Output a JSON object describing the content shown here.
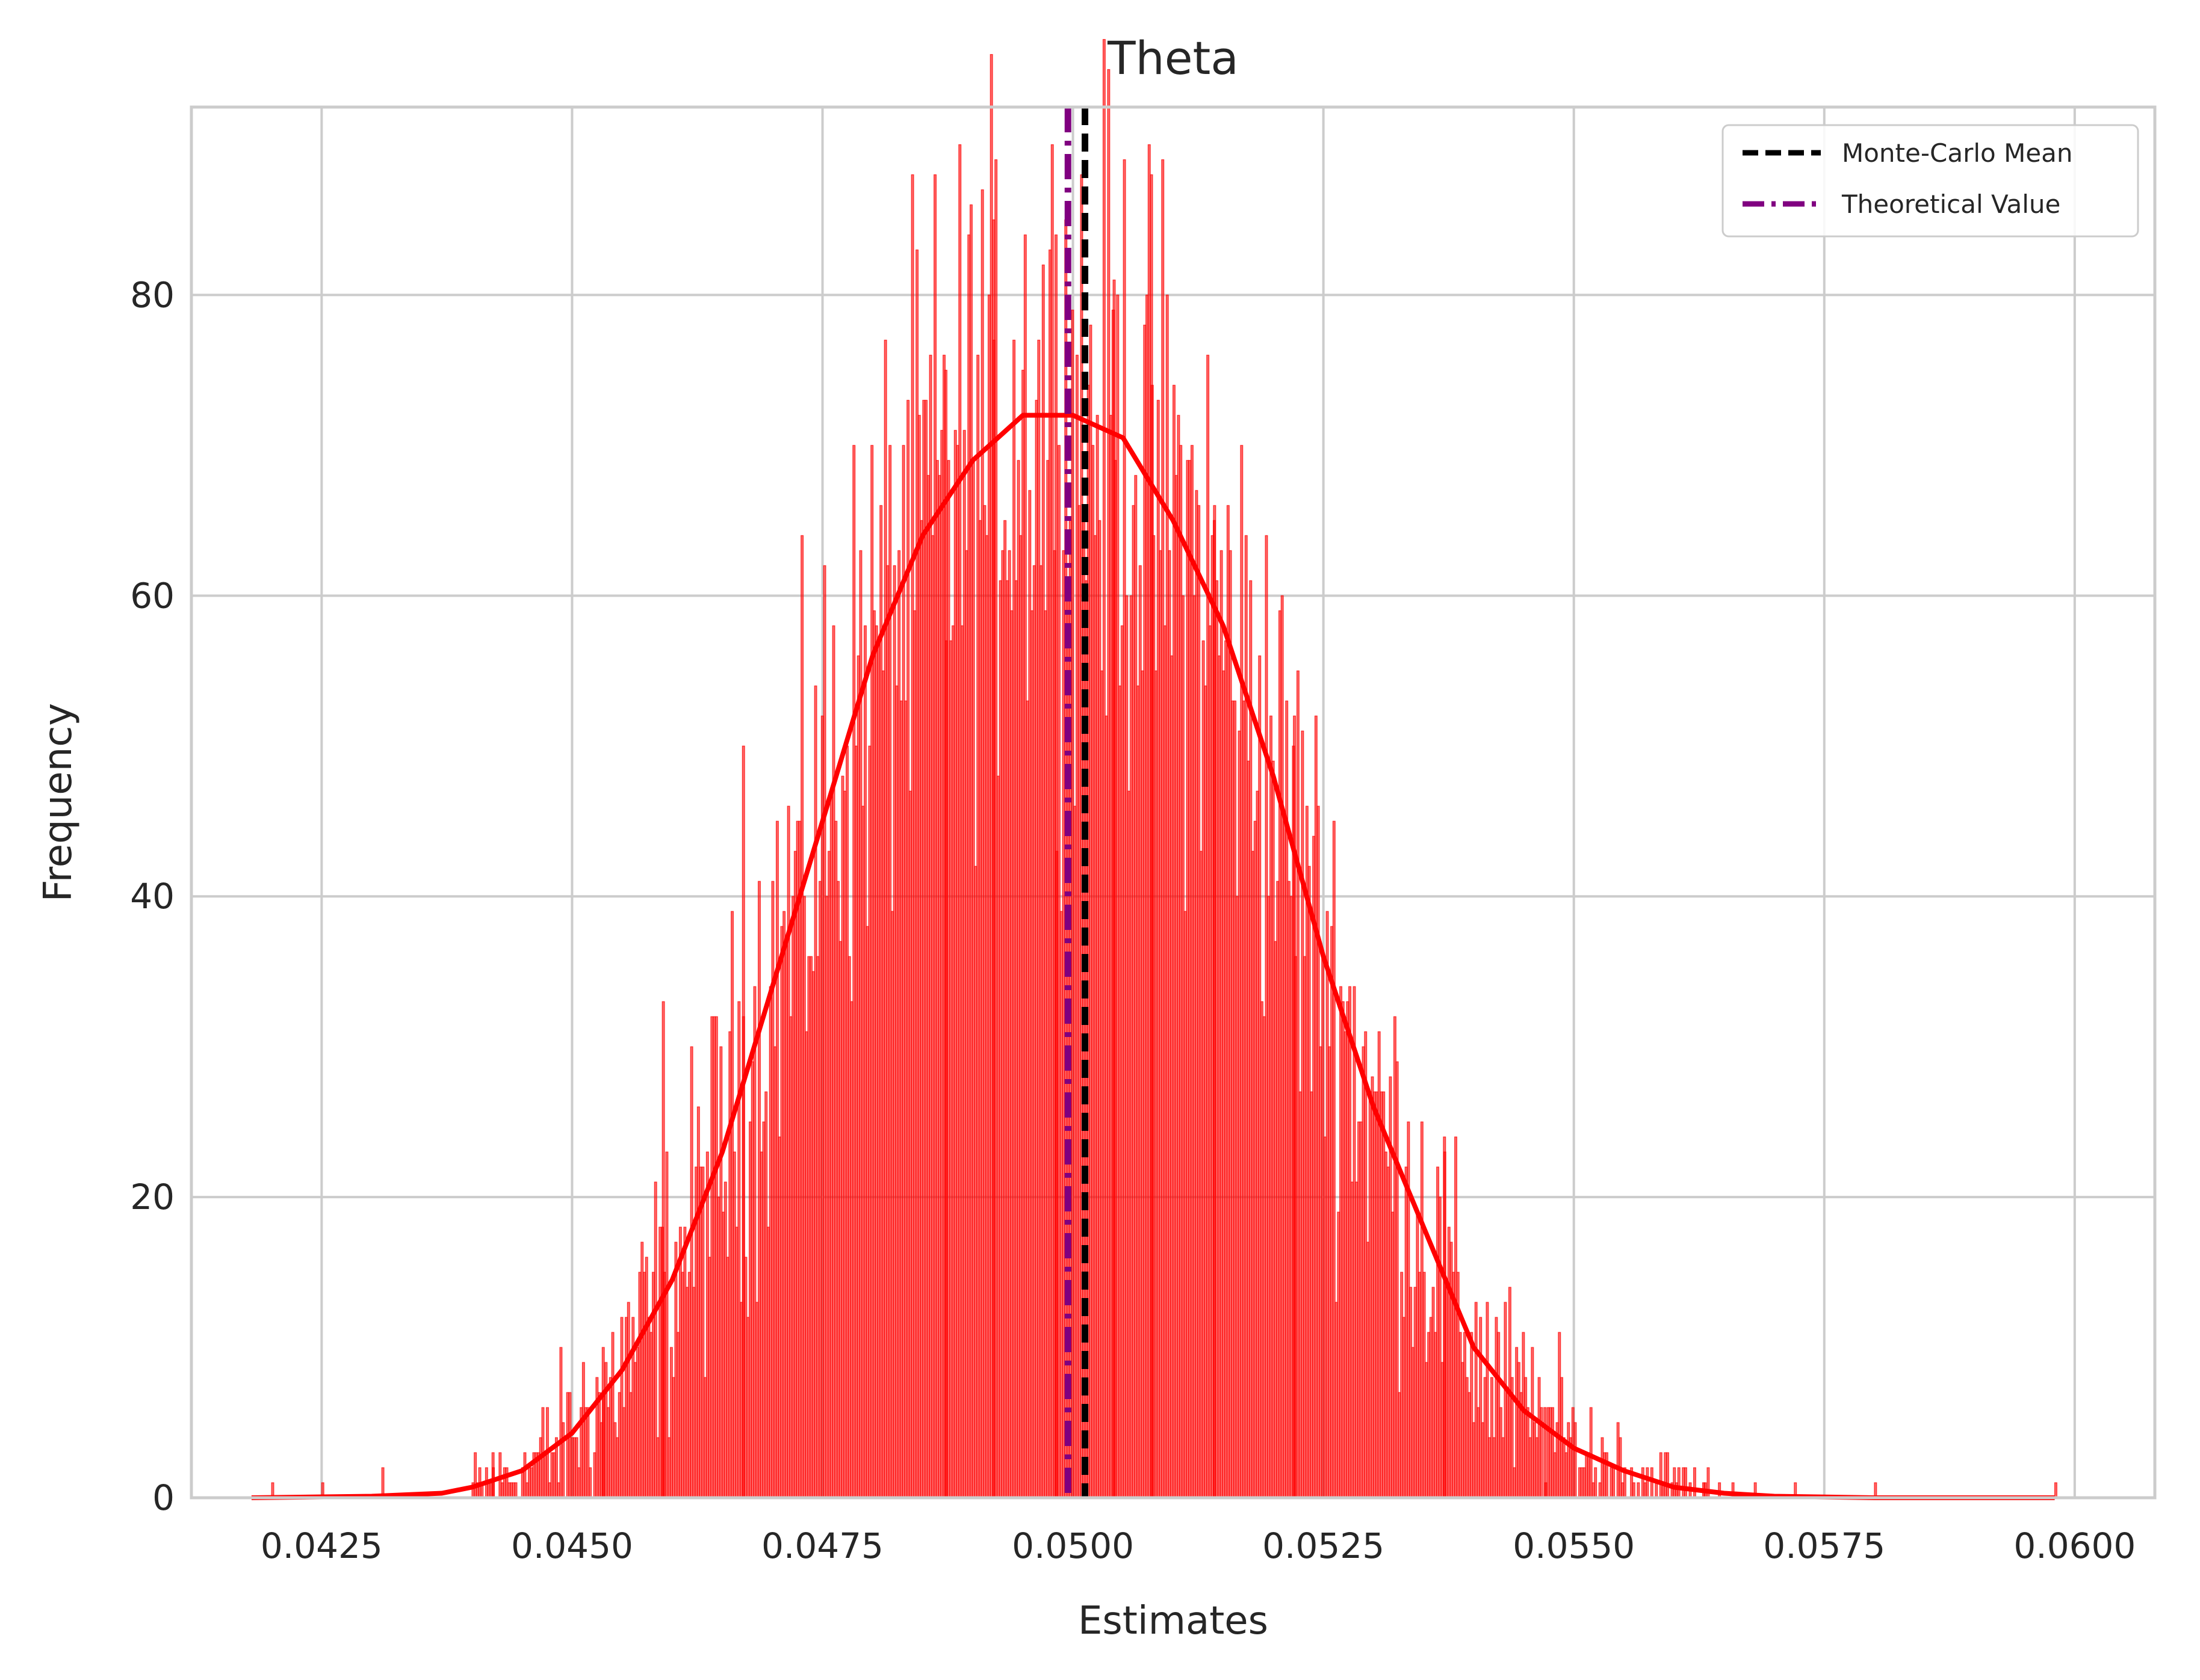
{
  "chart_data": {
    "type": "bar",
    "title": "Theta",
    "xlabel": "Estimates",
    "ylabel": "Frequency",
    "xlim": [
      0.0412,
      0.0608
    ],
    "ylim": [
      0,
      92.5
    ],
    "xticks": [
      0.0425,
      0.045,
      0.0475,
      0.05,
      0.0525,
      0.055,
      0.0575,
      0.06
    ],
    "xtick_labels": [
      "0.0425",
      "0.0450",
      "0.0475",
      "0.0500",
      "0.0525",
      "0.0550",
      "0.0575",
      "0.0600"
    ],
    "yticks": [
      0,
      20,
      40,
      60,
      80
    ],
    "ytick_labels": [
      "0",
      "20",
      "40",
      "60",
      "80"
    ],
    "grid": true,
    "legend_position": "top-right",
    "histogram": {
      "color": "#ff0000",
      "alpha": 0.6,
      "bin_width": 2.25e-05,
      "profile_x": [
        0.042,
        0.043,
        0.0437,
        0.044,
        0.0445,
        0.045,
        0.0455,
        0.046,
        0.0465,
        0.047,
        0.0475,
        0.048,
        0.0485,
        0.049,
        0.0495,
        0.05,
        0.0505,
        0.051,
        0.0515,
        0.052,
        0.0525,
        0.053,
        0.0535,
        0.054,
        0.0545,
        0.055,
        0.0555,
        0.056,
        0.0565,
        0.057,
        0.058,
        0.0598
      ],
      "profile_y": [
        0,
        0.1,
        0.3,
        0.7,
        1.8,
        4.3,
        8.5,
        14.5,
        23,
        34,
        45,
        56,
        64,
        69,
        72,
        72,
        70.5,
        65,
        58,
        48,
        36,
        26,
        18,
        10,
        5.8,
        3.3,
        1.8,
        0.7,
        0.3,
        0.1,
        0,
        0
      ],
      "notable_bins": [
        {
          "x": 0.04982,
          "y": 84
        },
        {
          "x": 0.0504,
          "y": 81
        },
        {
          "x": 0.04872,
          "y": 75
        },
        {
          "x": 0.0492,
          "y": 77
        },
        {
          "x": 0.0514,
          "y": 65
        },
        {
          "x": 0.05078,
          "y": 74
        },
        {
          "x": 0.0467,
          "y": 50
        },
        {
          "x": 0.0459,
          "y": 33
        },
        {
          "x": 0.0522,
          "y": 52
        },
        {
          "x": 0.0537,
          "y": 23
        },
        {
          "x": 0.0453,
          "y": 10
        },
        {
          "x": 0.0547,
          "y": 6
        },
        {
          "x": 0.0442,
          "y": 3
        }
      ],
      "isolated_bins": [
        {
          "x": 0.042,
          "y": 1
        },
        {
          "x": 0.0425,
          "y": 1
        },
        {
          "x": 0.0431,
          "y": 2
        },
        {
          "x": 0.0563,
          "y": 1
        },
        {
          "x": 0.0568,
          "y": 1
        },
        {
          "x": 0.0572,
          "y": 1
        },
        {
          "x": 0.058,
          "y": 1
        },
        {
          "x": 0.0598,
          "y": 1
        }
      ]
    },
    "kde": {
      "color": "#ff0000",
      "x": [
        0.0418,
        0.043,
        0.0437,
        0.044,
        0.0445,
        0.045,
        0.0455,
        0.046,
        0.0465,
        0.047,
        0.0475,
        0.048,
        0.0485,
        0.049,
        0.0495,
        0.05,
        0.0505,
        0.051,
        0.0515,
        0.052,
        0.0525,
        0.053,
        0.0535,
        0.054,
        0.0545,
        0.055,
        0.0555,
        0.056,
        0.0565,
        0.057,
        0.058,
        0.0598
      ],
      "y": [
        0,
        0.1,
        0.3,
        0.7,
        1.8,
        4.3,
        8.5,
        14.5,
        23,
        34,
        45,
        56,
        64,
        69,
        72,
        72,
        70.5,
        65,
        58,
        48,
        36,
        26,
        18,
        10,
        5.8,
        3.3,
        1.8,
        0.7,
        0.3,
        0.1,
        0,
        0
      ]
    },
    "vlines": [
      {
        "name": "Monte-Carlo Mean",
        "x": 0.05012,
        "color": "#000000",
        "style": "dashed"
      },
      {
        "name": "Theoretical Value",
        "x": 0.04995,
        "color": "#800080",
        "style": "dashdot"
      }
    ],
    "legend": [
      {
        "label": "Monte-Carlo Mean",
        "color": "#000000",
        "style": "dashed"
      },
      {
        "label": "Theoretical Value",
        "color": "#800080",
        "style": "dashdot"
      }
    ]
  }
}
